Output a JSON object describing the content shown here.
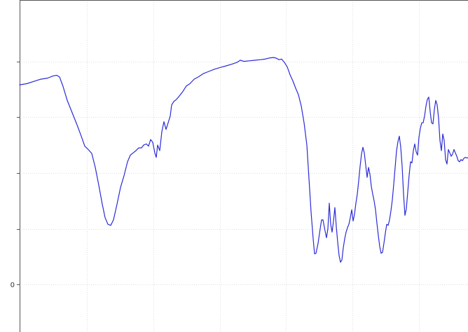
{
  "colors": {
    "series": "#2b2bd6",
    "grid": "#dedede",
    "axis": "#555555",
    "background": "#ffffff"
  },
  "chart_data": {
    "type": "line",
    "title": "",
    "xlabel": "",
    "ylabel": "",
    "grid": true,
    "legend": "none",
    "xlim": [
      0,
      640
    ],
    "ylim": [
      -0.85,
      5.1
    ],
    "x_gridlines": [
      96,
      191,
      286,
      380,
      475,
      570
    ],
    "y_ticks": [
      0,
      1,
      2,
      3,
      4
    ],
    "y_tick_labels": [
      {
        "value": 0,
        "label": "0"
      }
    ],
    "series": [
      {
        "name": "",
        "points": [
          [
            0,
            3.58
          ],
          [
            10,
            3.6
          ],
          [
            20,
            3.64
          ],
          [
            30,
            3.68
          ],
          [
            40,
            3.7
          ],
          [
            48,
            3.74
          ],
          [
            53,
            3.75
          ],
          [
            57,
            3.72
          ],
          [
            62,
            3.55
          ],
          [
            68,
            3.3
          ],
          [
            75,
            3.08
          ],
          [
            82,
            2.86
          ],
          [
            88,
            2.66
          ],
          [
            93,
            2.48
          ],
          [
            98,
            2.42
          ],
          [
            103,
            2.35
          ],
          [
            108,
            2.1
          ],
          [
            113,
            1.78
          ],
          [
            118,
            1.44
          ],
          [
            122,
            1.2
          ],
          [
            126,
            1.08
          ],
          [
            130,
            1.06
          ],
          [
            134,
            1.16
          ],
          [
            139,
            1.44
          ],
          [
            144,
            1.74
          ],
          [
            149,
            1.95
          ],
          [
            154,
            2.2
          ],
          [
            158,
            2.32
          ],
          [
            162,
            2.36
          ],
          [
            166,
            2.4
          ],
          [
            170,
            2.45
          ],
          [
            174,
            2.45
          ],
          [
            177,
            2.5
          ],
          [
            181,
            2.52
          ],
          [
            184,
            2.48
          ],
          [
            187,
            2.6
          ],
          [
            190,
            2.55
          ],
          [
            193,
            2.36
          ],
          [
            195,
            2.28
          ],
          [
            197,
            2.5
          ],
          [
            200,
            2.4
          ],
          [
            203,
            2.74
          ],
          [
            206,
            2.92
          ],
          [
            209,
            2.78
          ],
          [
            212,
            2.9
          ],
          [
            215,
            3.02
          ],
          [
            217,
            3.22
          ],
          [
            220,
            3.28
          ],
          [
            224,
            3.32
          ],
          [
            228,
            3.38
          ],
          [
            233,
            3.46
          ],
          [
            238,
            3.56
          ],
          [
            243,
            3.6
          ],
          [
            249,
            3.68
          ],
          [
            255,
            3.72
          ],
          [
            262,
            3.78
          ],
          [
            270,
            3.82
          ],
          [
            278,
            3.86
          ],
          [
            286,
            3.89
          ],
          [
            295,
            3.92
          ],
          [
            303,
            3.95
          ],
          [
            310,
            3.98
          ],
          [
            315,
            4.02
          ],
          [
            320,
            4.0
          ],
          [
            328,
            4.01
          ],
          [
            336,
            4.02
          ],
          [
            344,
            4.03
          ],
          [
            350,
            4.04
          ],
          [
            356,
            4.06
          ],
          [
            362,
            4.07
          ],
          [
            366,
            4.06
          ],
          [
            370,
            4.03
          ],
          [
            374,
            4.04
          ],
          [
            378,
            3.98
          ],
          [
            382,
            3.9
          ],
          [
            386,
            3.76
          ],
          [
            390,
            3.65
          ],
          [
            394,
            3.52
          ],
          [
            398,
            3.4
          ],
          [
            402,
            3.2
          ],
          [
            406,
            2.9
          ],
          [
            410,
            2.5
          ],
          [
            413,
            1.9
          ],
          [
            416,
            1.3
          ],
          [
            419,
            0.82
          ],
          [
            421,
            0.55
          ],
          [
            423,
            0.56
          ],
          [
            426,
            0.74
          ],
          [
            429,
            1.0
          ],
          [
            431,
            1.16
          ],
          [
            433,
            1.16
          ],
          [
            436,
            0.96
          ],
          [
            438,
            0.84
          ],
          [
            440,
            1.0
          ],
          [
            442,
            1.46
          ],
          [
            444,
            1.08
          ],
          [
            446,
            0.94
          ],
          [
            448,
            1.14
          ],
          [
            450,
            1.38
          ],
          [
            452,
            1.04
          ],
          [
            454,
            0.76
          ],
          [
            456,
            0.52
          ],
          [
            458,
            0.4
          ],
          [
            460,
            0.44
          ],
          [
            462,
            0.66
          ],
          [
            464,
            0.82
          ],
          [
            466,
            0.94
          ],
          [
            468,
            1.02
          ],
          [
            470,
            1.08
          ],
          [
            472,
            1.2
          ],
          [
            474,
            1.34
          ],
          [
            476,
            1.14
          ],
          [
            478,
            1.26
          ],
          [
            480,
            1.46
          ],
          [
            482,
            1.62
          ],
          [
            484,
            1.86
          ],
          [
            486,
            2.12
          ],
          [
            488,
            2.34
          ],
          [
            490,
            2.46
          ],
          [
            492,
            2.36
          ],
          [
            494,
            2.14
          ],
          [
            496,
            1.92
          ],
          [
            498,
            2.1
          ],
          [
            500,
            1.98
          ],
          [
            502,
            1.76
          ],
          [
            504,
            1.62
          ],
          [
            506,
            1.5
          ],
          [
            508,
            1.34
          ],
          [
            510,
            1.1
          ],
          [
            512,
            0.88
          ],
          [
            514,
            0.68
          ],
          [
            516,
            0.56
          ],
          [
            518,
            0.58
          ],
          [
            520,
            0.74
          ],
          [
            522,
            0.92
          ],
          [
            524,
            1.08
          ],
          [
            526,
            1.06
          ],
          [
            528,
            1.16
          ],
          [
            530,
            1.32
          ],
          [
            532,
            1.52
          ],
          [
            534,
            1.8
          ],
          [
            536,
            2.1
          ],
          [
            538,
            2.4
          ],
          [
            540,
            2.56
          ],
          [
            542,
            2.66
          ],
          [
            544,
            2.46
          ],
          [
            546,
            2.12
          ],
          [
            548,
            1.62
          ],
          [
            550,
            1.24
          ],
          [
            552,
            1.36
          ],
          [
            554,
            1.66
          ],
          [
            556,
            1.96
          ],
          [
            558,
            2.2
          ],
          [
            560,
            2.18
          ],
          [
            562,
            2.4
          ],
          [
            564,
            2.52
          ],
          [
            566,
            2.38
          ],
          [
            568,
            2.32
          ],
          [
            570,
            2.64
          ],
          [
            572,
            2.8
          ],
          [
            574,
            2.9
          ],
          [
            576,
            2.9
          ],
          [
            578,
            3.02
          ],
          [
            580,
            3.2
          ],
          [
            582,
            3.32
          ],
          [
            584,
            3.36
          ],
          [
            586,
            3.1
          ],
          [
            588,
            2.9
          ],
          [
            590,
            2.88
          ],
          [
            592,
            3.14
          ],
          [
            594,
            3.3
          ],
          [
            596,
            3.22
          ],
          [
            598,
            2.98
          ],
          [
            600,
            2.58
          ],
          [
            602,
            2.4
          ],
          [
            604,
            2.7
          ],
          [
            606,
            2.58
          ],
          [
            608,
            2.24
          ],
          [
            610,
            2.16
          ],
          [
            612,
            2.42
          ],
          [
            614,
            2.36
          ],
          [
            616,
            2.3
          ],
          [
            618,
            2.34
          ],
          [
            620,
            2.42
          ],
          [
            622,
            2.36
          ],
          [
            624,
            2.3
          ],
          [
            626,
            2.22
          ],
          [
            628,
            2.2
          ],
          [
            630,
            2.24
          ],
          [
            632,
            2.22
          ],
          [
            634,
            2.26
          ],
          [
            636,
            2.28
          ],
          [
            638,
            2.27
          ],
          [
            640,
            2.27
          ]
        ]
      }
    ]
  }
}
